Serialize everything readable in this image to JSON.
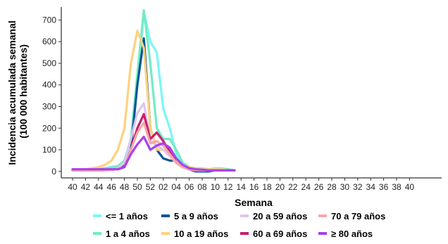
{
  "chart_data": {
    "type": "line",
    "title": "",
    "xlabel": "Semana",
    "ylabel_lines": [
      "Incidencia acumulada semanal",
      "(100 000 habitantes)"
    ],
    "x_ticks": [
      "40",
      "42",
      "44",
      "46",
      "48",
      "50",
      "52",
      "02",
      "04",
      "06",
      "08",
      "10",
      "12",
      "14",
      "16",
      "18",
      "20",
      "22",
      "24",
      "26",
      "28",
      "30",
      "32",
      "34",
      "36",
      "38",
      "40"
    ],
    "x": [
      "40",
      "41",
      "42",
      "43",
      "44",
      "45",
      "46",
      "47",
      "48",
      "49",
      "50",
      "51",
      "52",
      "01",
      "02",
      "03",
      "04",
      "05",
      "06",
      "07",
      "08",
      "09",
      "10",
      "11",
      "12",
      "13"
    ],
    "y_ticks": [
      0,
      100,
      200,
      300,
      400,
      500,
      600,
      700
    ],
    "ylim": [
      -30,
      760
    ],
    "grid": false,
    "legend_position": "bottom",
    "series": [
      {
        "name": "<= 1 años",
        "color": "#7af7f7",
        "values": [
          10,
          5,
          8,
          10,
          10,
          15,
          20,
          25,
          40,
          120,
          400,
          740,
          600,
          550,
          290,
          200,
          80,
          30,
          20,
          15,
          15,
          10,
          15,
          15,
          10,
          5
        ]
      },
      {
        "name": "1 a 4 años",
        "color": "#74ebc4",
        "values": [
          10,
          5,
          8,
          10,
          10,
          15,
          20,
          25,
          50,
          150,
          450,
          745,
          500,
          200,
          150,
          150,
          100,
          40,
          20,
          15,
          10,
          10,
          10,
          10,
          10,
          5
        ]
      },
      {
        "name": "5 a 9 años",
        "color": "#0f5496",
        "values": [
          5,
          5,
          5,
          8,
          8,
          10,
          10,
          15,
          30,
          100,
          400,
          615,
          200,
          100,
          60,
          50,
          50,
          20,
          10,
          0,
          0,
          0,
          5,
          5,
          5,
          5
        ]
      },
      {
        "name": "10 a 19 años",
        "color": "#fed27f",
        "values": [
          10,
          10,
          10,
          15,
          20,
          30,
          50,
          100,
          200,
          500,
          650,
          570,
          200,
          100,
          100,
          80,
          50,
          30,
          20,
          15,
          10,
          10,
          10,
          10,
          5,
          5
        ]
      },
      {
        "name": "20 a 59 años",
        "color": "#dfc6ee",
        "values": [
          5,
          5,
          5,
          5,
          5,
          10,
          10,
          15,
          40,
          150,
          270,
          315,
          140,
          120,
          100,
          70,
          40,
          20,
          10,
          10,
          5,
          5,
          5,
          5,
          5,
          5
        ]
      },
      {
        "name": "60 a 69 años",
        "color": "#c81e6f",
        "values": [
          5,
          5,
          5,
          5,
          5,
          5,
          8,
          10,
          20,
          100,
          200,
          265,
          150,
          180,
          140,
          90,
          40,
          20,
          10,
          5,
          5,
          5,
          5,
          5,
          5,
          5
        ]
      },
      {
        "name": "70 a 79 años",
        "color": "#f8a7a7",
        "values": [
          5,
          5,
          5,
          5,
          5,
          5,
          8,
          10,
          20,
          100,
          180,
          225,
          130,
          140,
          120,
          80,
          40,
          20,
          10,
          5,
          5,
          5,
          5,
          5,
          5,
          5
        ]
      },
      {
        "name": "≥ 80 años",
        "color": "#a93ff0",
        "values": [
          10,
          10,
          10,
          10,
          10,
          10,
          10,
          10,
          20,
          80,
          125,
          160,
          100,
          120,
          130,
          110,
          60,
          30,
          15,
          10,
          8,
          5,
          5,
          5,
          5,
          5
        ]
      }
    ]
  }
}
